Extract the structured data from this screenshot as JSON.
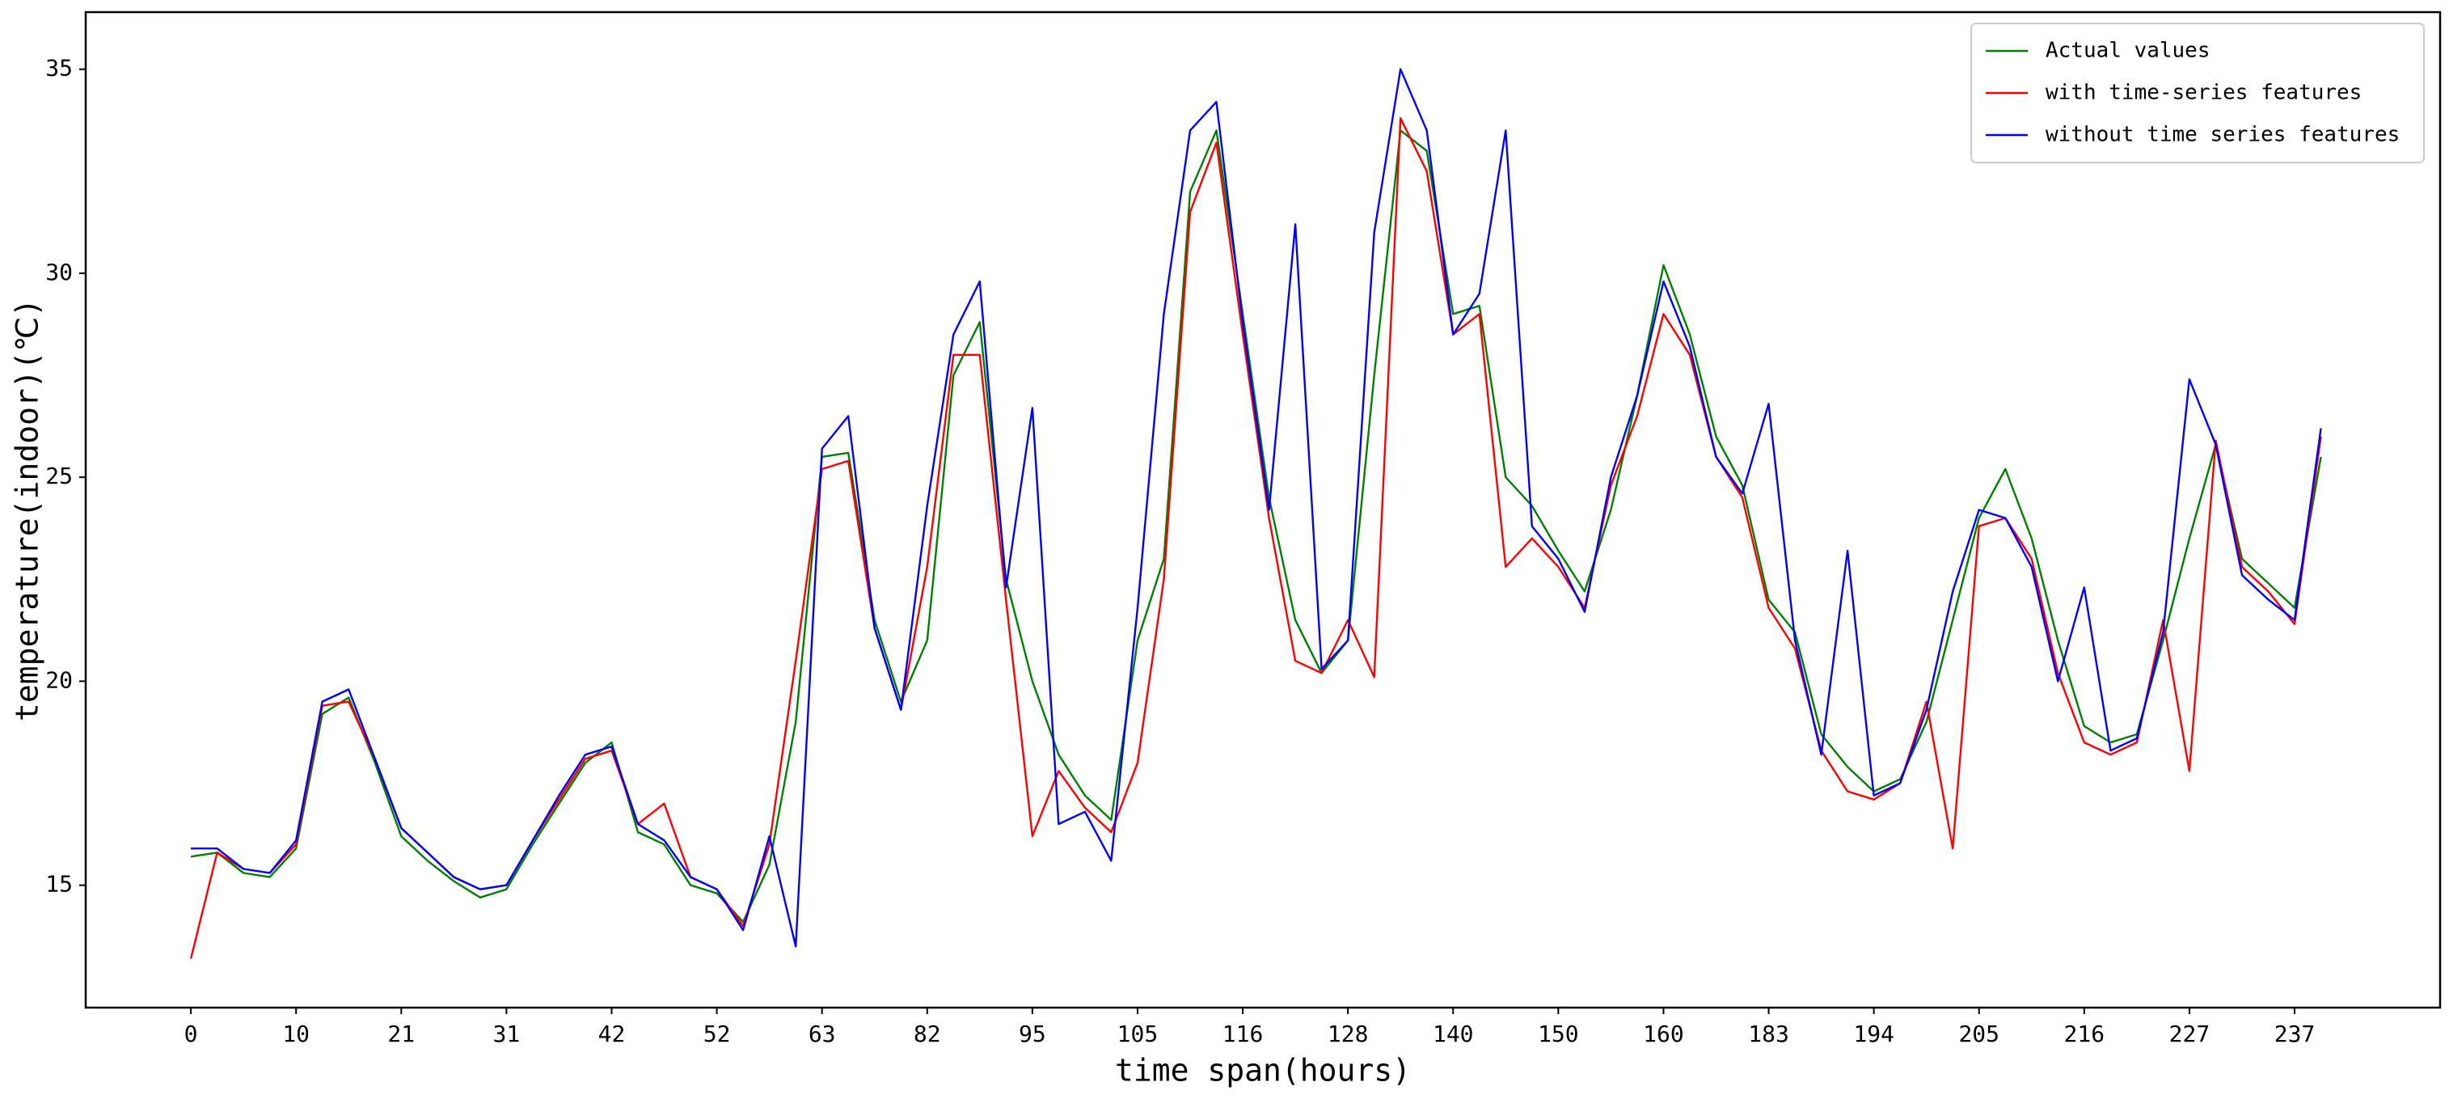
{
  "chart_data": {
    "type": "line",
    "xlabel": "time span(hours)",
    "ylabel": "temperature(indoor)(℃)",
    "x": [
      0,
      3,
      6,
      9,
      12,
      15,
      18,
      21,
      24,
      27,
      30,
      33,
      36,
      39,
      42,
      45,
      48,
      51,
      54,
      57,
      60,
      63,
      66,
      69,
      72,
      75,
      78,
      81,
      84,
      87,
      90,
      93,
      96,
      99,
      102,
      105,
      108,
      111,
      114,
      117,
      120,
      123,
      126,
      129,
      132,
      135,
      138,
      141,
      144,
      147,
      150,
      153,
      156,
      159,
      162,
      165,
      168,
      171,
      174,
      177,
      180,
      183,
      186,
      189,
      192,
      195,
      198,
      201,
      204,
      207,
      210,
      213,
      216,
      219,
      222,
      225,
      228,
      231,
      234,
      237,
      240,
      243
    ],
    "series": [
      {
        "name": "Actual values",
        "color": "#008000",
        "values": [
          15.7,
          15.8,
          15.3,
          15.2,
          15.9,
          19.2,
          19.6,
          18.0,
          16.2,
          15.6,
          15.1,
          14.7,
          14.9,
          16.0,
          17.0,
          18.0,
          18.5,
          16.3,
          16.0,
          15.0,
          14.8,
          14.1,
          15.5,
          19.0,
          25.5,
          25.6,
          21.5,
          19.5,
          21.0,
          27.5,
          28.8,
          22.5,
          20.0,
          18.2,
          17.2,
          16.6,
          21.0,
          23.0,
          32.0,
          33.5,
          29.0,
          24.5,
          21.5,
          20.2,
          21.0,
          27.5,
          33.5,
          33.0,
          29.0,
          29.2,
          25.0,
          24.3,
          23.2,
          22.2,
          24.2,
          27.0,
          30.2,
          28.5,
          26.0,
          24.8,
          22.0,
          21.2,
          18.7,
          17.9,
          17.3,
          17.6,
          19.0,
          21.5,
          24.0,
          25.2,
          23.5,
          21.0,
          18.9,
          18.5,
          18.7,
          21.0,
          23.5,
          25.8,
          23.0,
          22.4,
          21.8,
          25.5
        ]
      },
      {
        "name": "with time-series features",
        "color": "#ff0000",
        "values": [
          13.2,
          15.8,
          15.4,
          15.3,
          16.0,
          19.4,
          19.5,
          18.1,
          16.4,
          15.8,
          15.2,
          14.9,
          15.0,
          16.1,
          17.1,
          18.1,
          18.3,
          16.5,
          17.0,
          15.2,
          14.9,
          14.0,
          16.0,
          20.5,
          25.2,
          25.4,
          21.3,
          19.3,
          22.8,
          28.0,
          28.0,
          22.0,
          16.2,
          17.8,
          16.9,
          16.3,
          18.0,
          22.5,
          31.5,
          33.2,
          28.5,
          24.0,
          20.5,
          20.2,
          21.5,
          20.1,
          33.8,
          32.5,
          28.5,
          29.0,
          22.8,
          23.5,
          22.8,
          21.8,
          24.8,
          26.5,
          29.0,
          28.0,
          25.5,
          24.5,
          21.8,
          20.8,
          18.3,
          17.3,
          17.1,
          17.5,
          19.5,
          15.9,
          23.8,
          24.0,
          23.0,
          20.2,
          18.5,
          18.2,
          18.5,
          21.5,
          17.8,
          25.9,
          22.8,
          22.2,
          21.4,
          26.0
        ]
      },
      {
        "name": "without time series features",
        "color": "#0000ff",
        "values": [
          15.9,
          15.9,
          15.4,
          15.3,
          16.1,
          19.5,
          19.8,
          18.1,
          16.4,
          15.8,
          15.2,
          14.9,
          15.0,
          16.1,
          17.2,
          18.2,
          18.4,
          16.5,
          16.1,
          15.2,
          14.9,
          13.9,
          16.2,
          13.5,
          25.7,
          26.5,
          21.3,
          19.3,
          24.3,
          28.5,
          29.8,
          22.3,
          26.7,
          16.5,
          16.8,
          15.6,
          21.8,
          29.0,
          33.5,
          34.2,
          28.8,
          24.2,
          31.2,
          20.3,
          21.0,
          31.0,
          35.0,
          33.5,
          28.5,
          29.5,
          33.5,
          23.8,
          23.0,
          21.7,
          25.0,
          27.0,
          29.8,
          28.2,
          25.5,
          24.6,
          26.8,
          21.0,
          18.2,
          23.2,
          17.2,
          17.5,
          19.3,
          22.2,
          24.2,
          24.0,
          22.8,
          20.0,
          22.3,
          18.3,
          18.6,
          21.2,
          27.4,
          25.8,
          22.6,
          22.0,
          21.5,
          26.2
        ]
      }
    ],
    "xlim": [
      -12,
      256.6
    ],
    "ylim": [
      12,
      36.4
    ],
    "xticks": [
      0,
      {
        "value": 12,
        "label": "10"
      },
      {
        "value": 24,
        "label": "21"
      },
      {
        "value": 36,
        "label": "31"
      },
      {
        "value": 48,
        "label": "42"
      },
      {
        "value": 60,
        "label": "52"
      },
      {
        "value": 72,
        "label": "63"
      },
      {
        "value": 84,
        "label": "82"
      },
      {
        "value": 96,
        "label": "95"
      },
      {
        "value": 108,
        "label": "105"
      },
      {
        "value": 120,
        "label": "116"
      },
      {
        "value": 132,
        "label": "128"
      },
      {
        "value": 144,
        "label": "140"
      },
      {
        "value": 156,
        "label": "150"
      },
      {
        "value": 168,
        "label": "160"
      },
      {
        "value": 180,
        "label": "183"
      },
      {
        "value": 192,
        "label": "194"
      },
      {
        "value": 204,
        "label": "205"
      },
      {
        "value": 216,
        "label": "216"
      },
      {
        "value": 228,
        "label": "227"
      },
      {
        "value": 240,
        "label": "237"
      }
    ],
    "yticks": [
      15,
      20,
      25,
      30,
      35
    ],
    "grid": false,
    "legend": "upper right"
  }
}
